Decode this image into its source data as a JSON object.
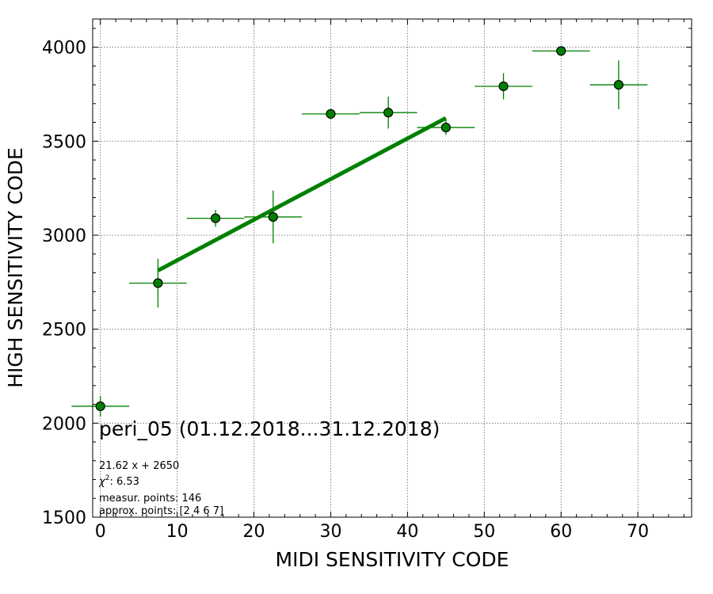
{
  "chart_data": {
    "type": "scatter",
    "xlabel": "MIDI SENSITIVITY CODE",
    "ylabel": "HIGH SENSITIVITY CODE",
    "xlim": [
      -1,
      77
    ],
    "ylim": [
      1500,
      4150
    ],
    "x_ticks": [
      0,
      10,
      20,
      30,
      40,
      50,
      60,
      70
    ],
    "y_ticks": [
      1500,
      2000,
      2500,
      3000,
      3500,
      4000
    ],
    "grid": true,
    "marker_color": "#008000",
    "marker_edge_color": "#000000",
    "errorbar_color": "#008000",
    "fit_color": "#008000",
    "points": [
      {
        "x": 0.0,
        "y": 2090,
        "xerr": 3.75,
        "yerr": 55
      },
      {
        "x": 7.5,
        "y": 2745,
        "xerr": 3.75,
        "yerr": 130
      },
      {
        "x": 15.0,
        "y": 3090,
        "xerr": 3.75,
        "yerr": 45
      },
      {
        "x": 22.5,
        "y": 3097,
        "xerr": 3.75,
        "yerr": 140
      },
      {
        "x": 30.0,
        "y": 3645,
        "xerr": 3.75,
        "yerr": 8
      },
      {
        "x": 37.5,
        "y": 3652,
        "xerr": 3.75,
        "yerr": 85
      },
      {
        "x": 45.0,
        "y": 3573,
        "xerr": 3.75,
        "yerr": 40
      },
      {
        "x": 52.5,
        "y": 3792,
        "xerr": 3.75,
        "yerr": 70
      },
      {
        "x": 60.0,
        "y": 3980,
        "xerr": 3.75,
        "yerr": 8
      },
      {
        "x": 67.5,
        "y": 3800,
        "xerr": 3.75,
        "yerr": 130
      }
    ],
    "fit_line": {
      "x": [
        7.5,
        45.0
      ],
      "slope": 21.62,
      "intercept": 2650
    },
    "annotations": {
      "title": "peri_05 (01.12.2018...31.12.2018)",
      "equation": "21.62 x + 2650",
      "chi_symbol": "χ",
      "chi_exponent": "2",
      "chi_value": ": 6.53",
      "measur_points": "measur. points: 146",
      "approx_points": "approx. points: [2 4 6 7]"
    }
  }
}
